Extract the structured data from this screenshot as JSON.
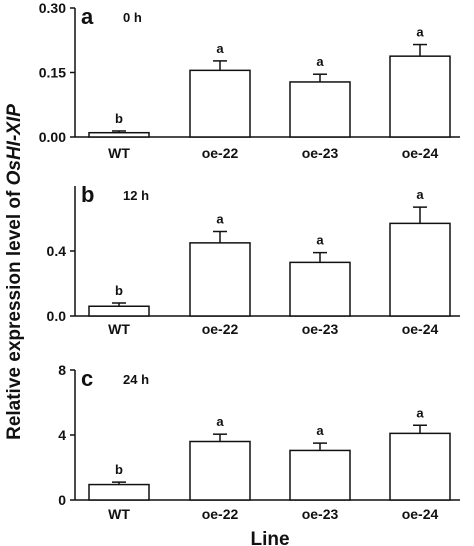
{
  "figure": {
    "ylabel_prefix": "Relative expression level of ",
    "ylabel_gene": "OsHI-XIP",
    "xlabel": "Line"
  },
  "chart_data": [
    {
      "type": "bar",
      "panel": "a",
      "time": "0 h",
      "categories": [
        "WT",
        "oe-22",
        "oe-23",
        "oe-24"
      ],
      "values": [
        0.01,
        0.155,
        0.128,
        0.188
      ],
      "errors": [
        0.004,
        0.022,
        0.018,
        0.027
      ],
      "significance": [
        "b",
        "a",
        "a",
        "a"
      ],
      "ylim": [
        0,
        0.3
      ],
      "yticks": [
        0.0,
        0.15,
        0.3
      ],
      "ytick_labels": [
        "0.00",
        "0.15",
        "0.30"
      ],
      "xlabel": "",
      "ylabel": ""
    },
    {
      "type": "bar",
      "panel": "b",
      "time": "12 h",
      "categories": [
        "WT",
        "oe-22",
        "oe-23",
        "oe-24"
      ],
      "values": [
        0.06,
        0.45,
        0.33,
        0.57
      ],
      "errors": [
        0.02,
        0.07,
        0.06,
        0.1
      ],
      "significance": [
        "b",
        "a",
        "a",
        "a"
      ],
      "ylim": [
        0,
        0.8
      ],
      "yticks": [
        0.0,
        0.4
      ],
      "ytick_labels": [
        "0.0",
        "0.4"
      ],
      "xlabel": "",
      "ylabel": ""
    },
    {
      "type": "bar",
      "panel": "c",
      "time": "24 h",
      "categories": [
        "WT",
        "oe-22",
        "oe-23",
        "oe-24"
      ],
      "values": [
        0.95,
        3.6,
        3.05,
        4.1
      ],
      "errors": [
        0.15,
        0.45,
        0.45,
        0.5
      ],
      "significance": [
        "b",
        "a",
        "a",
        "a"
      ],
      "ylim": [
        0,
        8
      ],
      "yticks": [
        0,
        4,
        8
      ],
      "ytick_labels": [
        "0",
        "4",
        "8"
      ],
      "xlabel": "",
      "ylabel": ""
    }
  ]
}
